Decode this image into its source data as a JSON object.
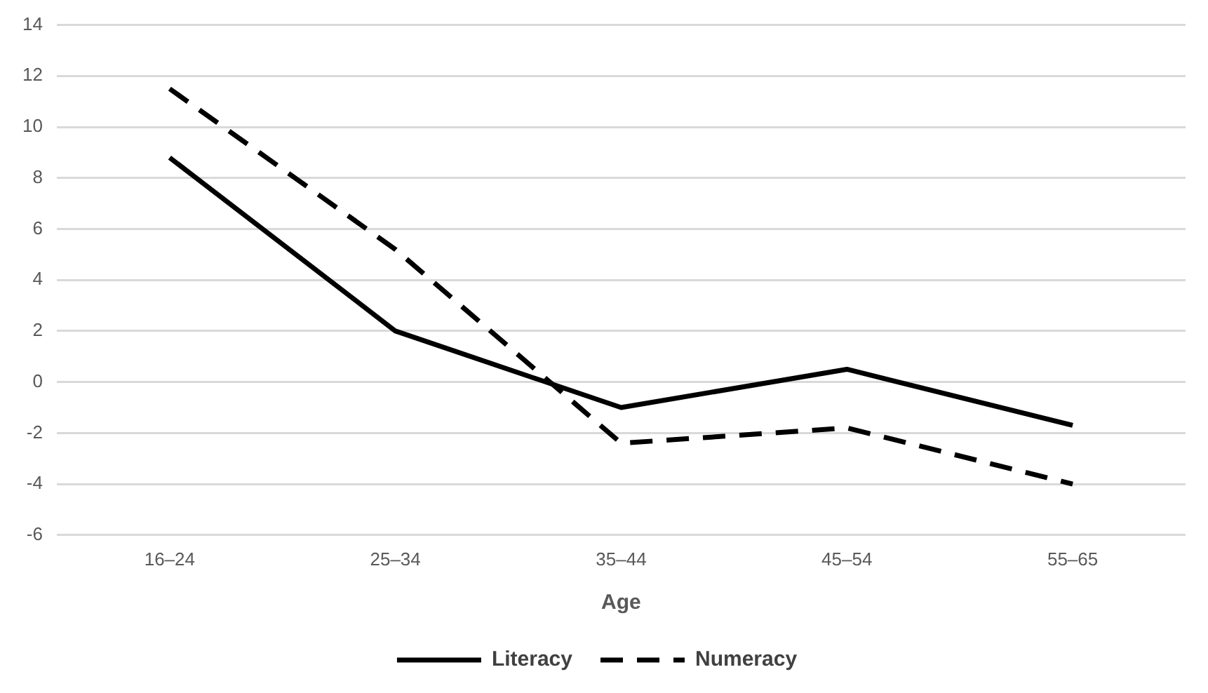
{
  "chart_data": {
    "type": "line",
    "xlabel": "Age",
    "categories": [
      "16–24",
      "25–34",
      "35–44",
      "45–54",
      "55–65"
    ],
    "series": [
      {
        "name": "Literacy",
        "color": "#000000",
        "line_style": "solid",
        "values": [
          8.8,
          2.0,
          -1.0,
          0.5,
          -1.7
        ]
      },
      {
        "name": "Numeracy",
        "color": "#000000",
        "line_style": "dashed",
        "values": [
          11.5,
          5.2,
          -2.4,
          -1.8,
          -4.0
        ]
      }
    ],
    "ylim": [
      -6,
      14
    ],
    "yticks": [
      -6,
      -4,
      -2,
      0,
      2,
      4,
      6,
      8,
      10,
      12,
      14
    ],
    "grid": "y",
    "legend": "bottom",
    "marker": "none"
  }
}
